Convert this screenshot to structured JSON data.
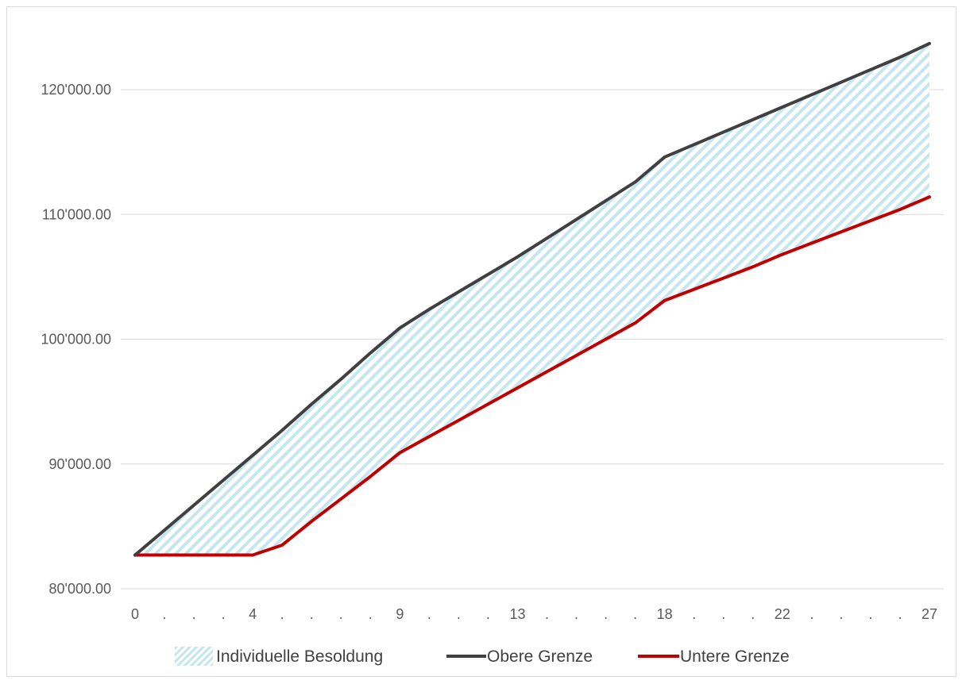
{
  "chart_data": {
    "type": "area",
    "title": "",
    "xlabel": "",
    "ylabel": "",
    "x": [
      0,
      1,
      2,
      3,
      4,
      5,
      6,
      7,
      8,
      9,
      10,
      11,
      12,
      13,
      14,
      15,
      16,
      17,
      18,
      19,
      20,
      21,
      22,
      23,
      24,
      25,
      26,
      27
    ],
    "x_tick_labels": [
      "0",
      ".",
      ".",
      ".",
      "4",
      ".",
      ".",
      ".",
      ".",
      "9",
      ".",
      ".",
      ".",
      "13",
      ".",
      ".",
      ".",
      ".",
      "18",
      ".",
      ".",
      ".",
      "22",
      ".",
      ".",
      ".",
      ".",
      "27"
    ],
    "ylim": [
      80000,
      125000
    ],
    "y_ticks": [
      80000,
      90000,
      100000,
      110000,
      120000
    ],
    "y_tick_labels": [
      "80'000.00",
      "90'000.00",
      "100'000.00",
      "110'000.00",
      "120'000.00"
    ],
    "grid": true,
    "legend_position": "bottom",
    "series": [
      {
        "name": "Individuelle Besoldung",
        "kind": "band",
        "color": "#9fd3e0"
      },
      {
        "name": "Obere Grenze",
        "kind": "line",
        "color": "#404040",
        "values": [
          82700,
          84700,
          86700,
          88700,
          90700,
          92700,
          94800,
          96800,
          98900,
          100900,
          102400,
          103800,
          105200,
          106600,
          108100,
          109600,
          111100,
          112600,
          114600,
          115600,
          116600,
          117600,
          118600,
          119600,
          120600,
          121600,
          122600,
          123700
        ]
      },
      {
        "name": "Untere Grenze",
        "kind": "line",
        "color": "#c00000",
        "values": [
          82700,
          82700,
          82700,
          82700,
          82700,
          83500,
          85400,
          87200,
          89000,
          90900,
          92200,
          93500,
          94800,
          96100,
          97400,
          98700,
          100000,
          101300,
          103100,
          104000,
          104900,
          105800,
          106800,
          107700,
          108600,
          109500,
          110400,
          111400
        ]
      }
    ]
  }
}
